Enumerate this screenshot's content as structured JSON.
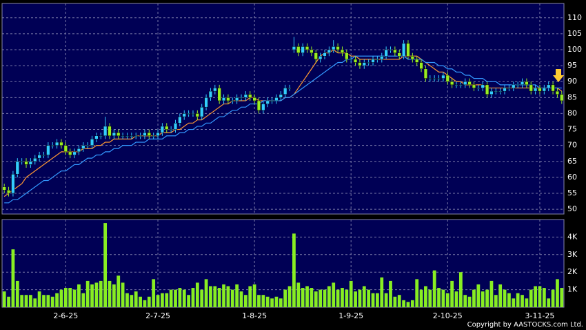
{
  "chart_data": {
    "type": "candlestick",
    "open": [
      57,
      56,
      55,
      61,
      65,
      65,
      64,
      65,
      66,
      67,
      67,
      70,
      70,
      71,
      70,
      68,
      67,
      68,
      69,
      70,
      70,
      72,
      73,
      73,
      76,
      73,
      74,
      73,
      73,
      73,
      73,
      73,
      73,
      74,
      73,
      73,
      74,
      76,
      75,
      75,
      77,
      79,
      80,
      80,
      80,
      79,
      82,
      85,
      87,
      88,
      84,
      85,
      84,
      84,
      85,
      85,
      86,
      85,
      84,
      81,
      83,
      84,
      84,
      85,
      86,
      88,
      100,
      101,
      99,
      101,
      100,
      99,
      97,
      98,
      99,
      100,
      101,
      100,
      99,
      97,
      97,
      96,
      95,
      96,
      96,
      97,
      97,
      98,
      100,
      100,
      99,
      98,
      102,
      98,
      97,
      96,
      94,
      91,
      91,
      91,
      91,
      92,
      90,
      89,
      89,
      89,
      90,
      89,
      88,
      88,
      89,
      86,
      87,
      87,
      87,
      88,
      88,
      89,
      89,
      90,
      89,
      87,
      88,
      87,
      88,
      89,
      87,
      86
    ],
    "high": [
      58,
      57,
      62,
      66,
      66,
      66,
      66,
      67,
      68,
      68,
      71,
      71,
      72,
      72,
      71,
      69,
      69,
      70,
      71,
      71,
      73,
      74,
      74,
      79,
      77,
      75,
      75,
      74,
      74,
      74,
      74,
      74,
      75,
      75,
      74,
      75,
      77,
      77,
      76,
      78,
      80,
      81,
      81,
      81,
      81,
      83,
      86,
      88,
      89,
      89,
      86,
      86,
      85,
      86,
      86,
      87,
      87,
      86,
      85,
      84,
      85,
      85,
      86,
      87,
      89,
      89,
      104,
      102,
      102,
      102,
      101,
      100,
      99,
      100,
      101,
      103,
      102,
      101,
      100,
      98,
      98,
      97,
      97,
      97,
      98,
      98,
      99,
      101,
      101,
      101,
      100,
      103,
      103,
      99,
      98,
      97,
      95,
      92,
      92,
      92,
      93,
      93,
      91,
      90,
      90,
      91,
      91,
      90,
      89,
      90,
      90,
      88,
      88,
      88,
      89,
      89,
      90,
      90,
      91,
      91,
      90,
      89,
      89,
      89,
      90,
      90,
      88,
      87
    ],
    "low": [
      55,
      54,
      54,
      60,
      64,
      63,
      63,
      64,
      65,
      66,
      66,
      69,
      69,
      69,
      67,
      66,
      66,
      67,
      68,
      69,
      69,
      71,
      72,
      72,
      72,
      72,
      72,
      72,
      72,
      72,
      72,
      72,
      72,
      72,
      72,
      72,
      73,
      74,
      74,
      74,
      76,
      78,
      79,
      79,
      78,
      78,
      81,
      84,
      86,
      83,
      83,
      83,
      83,
      83,
      84,
      84,
      84,
      83,
      80,
      80,
      82,
      83,
      83,
      84,
      85,
      87,
      99,
      98,
      98,
      99,
      98,
      96,
      96,
      97,
      98,
      99,
      99,
      98,
      96,
      96,
      95,
      94,
      94,
      95,
      95,
      96,
      96,
      97,
      99,
      98,
      97,
      97,
      97,
      96,
      95,
      93,
      90,
      90,
      90,
      90,
      90,
      89,
      88,
      88,
      88,
      88,
      88,
      87,
      87,
      87,
      85,
      85,
      86,
      86,
      86,
      87,
      87,
      88,
      88,
      88,
      86,
      86,
      86,
      86,
      87,
      86,
      85,
      83
    ],
    "close": [
      56,
      55,
      61,
      65,
      65,
      64,
      65,
      66,
      67,
      67,
      70,
      70,
      71,
      70,
      68,
      67,
      68,
      69,
      70,
      70,
      72,
      73,
      73,
      76,
      73,
      74,
      73,
      73,
      73,
      73,
      73,
      73,
      74,
      73,
      73,
      74,
      76,
      75,
      75,
      77,
      79,
      80,
      80,
      80,
      79,
      82,
      85,
      87,
      88,
      84,
      85,
      84,
      84,
      85,
      85,
      86,
      85,
      84,
      81,
      83,
      84,
      84,
      85,
      86,
      88,
      88,
      101,
      99,
      101,
      100,
      99,
      97,
      98,
      99,
      100,
      101,
      100,
      99,
      97,
      97,
      96,
      95,
      96,
      96,
      97,
      97,
      98,
      100,
      100,
      99,
      98,
      102,
      98,
      97,
      96,
      94,
      91,
      91,
      91,
      91,
      92,
      90,
      89,
      89,
      89,
      90,
      89,
      88,
      88,
      89,
      86,
      87,
      87,
      87,
      88,
      88,
      89,
      89,
      90,
      89,
      87,
      88,
      87,
      88,
      89,
      87,
      86,
      84
    ],
    "up_color": "#33ccff",
    "down_color": "#99ee22",
    "ma1": {
      "color": "#ff9933",
      "values": [
        54,
        55,
        56,
        57,
        58,
        60,
        61,
        62,
        63,
        64,
        65,
        66,
        67,
        68,
        68,
        68,
        68,
        68,
        69,
        69,
        69,
        70,
        70,
        71,
        71,
        72,
        72,
        72,
        72,
        72,
        73,
        73,
        73,
        73,
        73,
        73,
        74,
        74,
        74,
        75,
        75,
        76,
        77,
        77,
        78,
        78,
        79,
        80,
        81,
        82,
        83,
        83,
        84,
        84,
        84,
        84,
        85,
        85,
        84,
        84,
        84,
        84,
        84,
        84,
        85,
        85,
        86,
        88,
        90,
        92,
        94,
        96,
        98,
        99,
        99,
        100,
        99,
        99,
        99,
        98,
        98,
        97,
        97,
        97,
        97,
        97,
        97,
        97,
        97,
        97,
        97,
        98,
        98,
        98,
        98,
        97,
        96,
        95,
        94,
        93,
        93,
        92,
        91,
        90,
        90,
        89,
        89,
        89,
        89,
        89,
        88,
        88,
        88,
        88,
        88,
        88,
        88,
        88,
        88,
        88,
        88,
        88,
        88,
        88,
        88,
        88,
        88,
        87
      ]
    },
    "ma2": {
      "color": "#3399ff",
      "values": [
        52,
        52,
        53,
        53,
        54,
        55,
        56,
        57,
        58,
        59,
        59,
        60,
        61,
        62,
        62,
        63,
        64,
        64,
        65,
        66,
        66,
        67,
        67,
        68,
        68,
        69,
        69,
        70,
        70,
        70,
        71,
        71,
        71,
        72,
        72,
        72,
        72,
        73,
        73,
        73,
        74,
        74,
        75,
        75,
        76,
        76,
        77,
        77,
        78,
        79,
        79,
        80,
        81,
        81,
        82,
        82,
        83,
        83,
        83,
        84,
        84,
        84,
        84,
        84,
        85,
        85,
        86,
        87,
        88,
        89,
        90,
        91,
        92,
        93,
        94,
        95,
        96,
        96,
        97,
        97,
        98,
        98,
        98,
        98,
        98,
        98,
        98,
        98,
        98,
        98,
        98,
        98,
        97,
        97,
        97,
        97,
        96,
        96,
        96,
        95,
        95,
        94,
        94,
        93,
        93,
        92,
        92,
        91,
        91,
        91,
        90,
        90,
        90,
        89,
        89,
        89,
        89,
        89,
        89,
        89,
        89,
        89,
        88,
        88,
        88,
        88,
        88,
        88
      ]
    },
    "ylim": [
      48.5,
      114.5
    ],
    "yticks": [
      50,
      55,
      60,
      65,
      70,
      75,
      80,
      85,
      90,
      95,
      100,
      105,
      110
    ],
    "grid": true,
    "xticks": [
      {
        "value": 14,
        "label": "2-6-25"
      },
      {
        "value": 35,
        "label": "2-7-25"
      },
      {
        "value": 57,
        "label": "1-8-25"
      },
      {
        "value": 79,
        "label": "1-9-25"
      },
      {
        "value": 101,
        "label": "2-10-25"
      },
      {
        "value": 122,
        "label": "3-11-25"
      }
    ],
    "volume": {
      "color": "#88ee22",
      "values": [
        900,
        600,
        3300,
        1500,
        700,
        700,
        700,
        500,
        900,
        700,
        700,
        600,
        800,
        1000,
        1100,
        1100,
        1000,
        1300,
        800,
        1500,
        1300,
        1400,
        1500,
        4800,
        1500,
        1300,
        1800,
        1400,
        800,
        700,
        900,
        600,
        400,
        600,
        1600,
        700,
        800,
        800,
        1000,
        1000,
        1100,
        1000,
        700,
        1100,
        1400,
        1000,
        1600,
        1200,
        1200,
        1100,
        1300,
        1200,
        1000,
        1300,
        900,
        700,
        1200,
        1300,
        700,
        700,
        600,
        500,
        600,
        500,
        1000,
        1200,
        4200,
        1400,
        1100,
        1200,
        1100,
        900,
        1000,
        1000,
        1200,
        1400,
        1000,
        1100,
        1000,
        1500,
        900,
        1000,
        1200,
        1000,
        800,
        800,
        1700,
        800,
        1500,
        600,
        700,
        400,
        300,
        400,
        1600,
        1000,
        1200,
        1000,
        2100,
        1100,
        1000,
        800,
        1500,
        900,
        2000,
        700,
        600,
        1000,
        1300,
        900,
        1000,
        1500,
        700,
        1300,
        1000,
        800,
        500,
        800,
        700,
        500,
        1000,
        1200,
        1200,
        1100,
        500,
        1000,
        1600,
        1100
      ],
      "ylim": [
        0,
        5000
      ],
      "yticks": [
        {
          "value": 1000,
          "label": "1K"
        },
        {
          "value": 2000,
          "label": "2K"
        },
        {
          "value": 3000,
          "label": "3K"
        },
        {
          "value": 4000,
          "label": "4K"
        }
      ]
    },
    "copyright": "Copyright by AASTOCKS.com Ltd."
  }
}
